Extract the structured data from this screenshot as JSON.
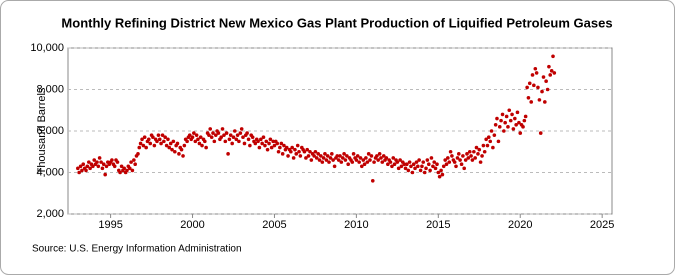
{
  "chart_data": {
    "type": "scatter",
    "title": "Monthly Refining District New Mexico Gas Plant Production of Liquified Petroleum Gases",
    "y_label": "Thousand Barrels",
    "source": "Source: U.S. Energy Information Administration",
    "color": "#c00000",
    "grid": true,
    "xlim": [
      1992.4,
      2025.6
    ],
    "ylim": [
      2000,
      10000
    ],
    "xticks": [
      1995,
      2000,
      2005,
      2010,
      2015,
      2020,
      2025
    ],
    "yticks": [
      {
        "value": 2000,
        "label": "2,000"
      },
      {
        "value": 4000,
        "label": "4,000"
      },
      {
        "value": 6000,
        "label": "6,000"
      },
      {
        "value": 8000,
        "label": "8,000"
      },
      {
        "value": 10000,
        "label": "10,000"
      }
    ],
    "x": [
      1993,
      1993.08,
      1993.17,
      1993.25,
      1993.33,
      1993.42,
      1993.5,
      1993.58,
      1993.67,
      1993.75,
      1993.83,
      1993.92,
      1994,
      1994.08,
      1994.17,
      1994.25,
      1994.33,
      1994.42,
      1994.5,
      1994.58,
      1994.67,
      1994.75,
      1994.83,
      1994.92,
      1995,
      1995.08,
      1995.17,
      1995.25,
      1995.33,
      1995.42,
      1995.5,
      1995.58,
      1995.67,
      1995.75,
      1995.83,
      1995.92,
      1996,
      1996.08,
      1996.17,
      1996.25,
      1996.33,
      1996.42,
      1996.5,
      1996.58,
      1996.67,
      1996.75,
      1996.83,
      1996.92,
      1997,
      1997.08,
      1997.17,
      1997.25,
      1997.33,
      1997.42,
      1997.5,
      1997.58,
      1997.67,
      1997.75,
      1997.83,
      1997.92,
      1998,
      1998.08,
      1998.17,
      1998.25,
      1998.33,
      1998.42,
      1998.5,
      1998.58,
      1998.67,
      1998.75,
      1998.83,
      1998.92,
      1999,
      1999.08,
      1999.17,
      1999.25,
      1999.33,
      1999.42,
      1999.5,
      1999.58,
      1999.67,
      1999.75,
      1999.83,
      1999.92,
      2000,
      2000.08,
      2000.17,
      2000.25,
      2000.33,
      2000.42,
      2000.5,
      2000.58,
      2000.67,
      2000.75,
      2000.83,
      2000.92,
      2001,
      2001.08,
      2001.17,
      2001.25,
      2001.33,
      2001.42,
      2001.5,
      2001.58,
      2001.67,
      2001.75,
      2001.83,
      2001.92,
      2002,
      2002.08,
      2002.17,
      2002.25,
      2002.33,
      2002.42,
      2002.5,
      2002.58,
      2002.67,
      2002.75,
      2002.83,
      2002.92,
      2003,
      2003.08,
      2003.17,
      2003.25,
      2003.33,
      2003.42,
      2003.5,
      2003.58,
      2003.67,
      2003.75,
      2003.83,
      2003.92,
      2004,
      2004.08,
      2004.17,
      2004.25,
      2004.33,
      2004.42,
      2004.5,
      2004.58,
      2004.67,
      2004.75,
      2004.83,
      2004.92,
      2005,
      2005.08,
      2005.17,
      2005.25,
      2005.33,
      2005.42,
      2005.5,
      2005.58,
      2005.67,
      2005.75,
      2005.83,
      2005.92,
      2006,
      2006.08,
      2006.17,
      2006.25,
      2006.33,
      2006.42,
      2006.5,
      2006.58,
      2006.67,
      2006.75,
      2006.83,
      2006.92,
      2007,
      2007.08,
      2007.17,
      2007.25,
      2007.33,
      2007.42,
      2007.5,
      2007.58,
      2007.67,
      2007.75,
      2007.83,
      2007.92,
      2008,
      2008.08,
      2008.17,
      2008.25,
      2008.33,
      2008.42,
      2008.5,
      2008.58,
      2008.67,
      2008.75,
      2008.83,
      2008.92,
      2009,
      2009.08,
      2009.17,
      2009.25,
      2009.33,
      2009.42,
      2009.5,
      2009.58,
      2009.67,
      2009.75,
      2009.83,
      2009.92,
      2010,
      2010.08,
      2010.17,
      2010.25,
      2010.33,
      2010.42,
      2010.5,
      2010.58,
      2010.67,
      2010.75,
      2010.83,
      2010.92,
      2011,
      2011.08,
      2011.17,
      2011.25,
      2011.33,
      2011.42,
      2011.5,
      2011.58,
      2011.67,
      2011.75,
      2011.83,
      2011.92,
      2012,
      2012.08,
      2012.17,
      2012.25,
      2012.33,
      2012.42,
      2012.5,
      2012.58,
      2012.67,
      2012.75,
      2012.83,
      2012.92,
      2013,
      2013.08,
      2013.17,
      2013.25,
      2013.33,
      2013.42,
      2013.5,
      2013.58,
      2013.67,
      2013.75,
      2013.83,
      2013.92,
      2014,
      2014.08,
      2014.17,
      2014.25,
      2014.33,
      2014.42,
      2014.5,
      2014.58,
      2014.67,
      2014.75,
      2014.83,
      2014.92,
      2015,
      2015.08,
      2015.17,
      2015.25,
      2015.33,
      2015.42,
      2015.5,
      2015.58,
      2015.67,
      2015.75,
      2015.83,
      2015.92,
      2016,
      2016.08,
      2016.17,
      2016.25,
      2016.33,
      2016.42,
      2016.5,
      2016.58,
      2016.67,
      2016.75,
      2016.83,
      2016.92,
      2017,
      2017.08,
      2017.17,
      2017.25,
      2017.33,
      2017.42,
      2017.5,
      2017.58,
      2017.67,
      2017.75,
      2017.83,
      2017.92,
      2018,
      2018.08,
      2018.17,
      2018.25,
      2018.33,
      2018.42,
      2018.5,
      2018.58,
      2018.67,
      2018.75,
      2018.83,
      2018.92,
      2019,
      2019.08,
      2019.17,
      2019.25,
      2019.33,
      2019.42,
      2019.5,
      2019.58,
      2019.67,
      2019.75,
      2019.83,
      2019.92,
      2020,
      2020.08,
      2020.17,
      2020.25,
      2020.33,
      2020.42,
      2020.5,
      2020.58,
      2020.67,
      2020.75,
      2020.83,
      2020.92,
      2021,
      2021.08,
      2021.17,
      2021.25,
      2021.33,
      2021.42,
      2021.5,
      2021.58,
      2021.67,
      2021.75,
      2021.83,
      2021.92,
      2022,
      2022.08
    ],
    "values": [
      4200,
      4000,
      4300,
      4100,
      4400,
      4200,
      4100,
      4300,
      4500,
      4200,
      4400,
      4300,
      4600,
      4400,
      4500,
      4300,
      4700,
      4500,
      4200,
      4400,
      3900,
      4300,
      4500,
      4400,
      4500,
      4600,
      4400,
      4300,
      4600,
      4500,
      4100,
      4000,
      4300,
      4100,
      4200,
      4000,
      4100,
      4300,
      4200,
      4500,
      4100,
      4600,
      4400,
      4800,
      4900,
      5200,
      5400,
      5600,
      5300,
      5700,
      5200,
      5500,
      5600,
      5400,
      5800,
      5700,
      5300,
      5600,
      5500,
      5800,
      5600,
      5400,
      5800,
      5500,
      5700,
      5300,
      5600,
      5200,
      5400,
      5100,
      5500,
      5000,
      5300,
      5400,
      4900,
      5200,
      5100,
      4800,
      5300,
      5600,
      5500,
      5700,
      5800,
      5600,
      5700,
      5900,
      5500,
      5800,
      5600,
      5400,
      5700,
      5300,
      5600,
      5500,
      5200,
      5900,
      5800,
      6100,
      5700,
      5900,
      5500,
      5800,
      6000,
      5900,
      5600,
      5700,
      6100,
      5800,
      5500,
      5900,
      4900,
      5600,
      5800,
      5400,
      5700,
      6000,
      5600,
      5800,
      5500,
      5900,
      6100,
      5700,
      5400,
      5800,
      5900,
      5600,
      5300,
      5800,
      5700,
      5500,
      5400,
      5600,
      5500,
      5200,
      5600,
      5400,
      5700,
      5300,
      5500,
      5100,
      5400,
      5600,
      5200,
      5500,
      5300,
      5500,
      5400,
      5000,
      5200,
      5400,
      4900,
      5300,
      5100,
      5200,
      4800,
      5100,
      5000,
      5200,
      4700,
      5100,
      4900,
      5300,
      5000,
      4800,
      5200,
      5100,
      5000,
      4700,
      5100,
      4800,
      5000,
      4600,
      4900,
      4800,
      5000,
      4700,
      4900,
      4600,
      4800,
      4500,
      4700,
      4900,
      4600,
      4800,
      4500,
      4700,
      4900,
      4600,
      4300,
      4700,
      4800,
      4600,
      4800,
      4500,
      4700,
      4900,
      4600,
      4800,
      4400,
      4700,
      4600,
      4500,
      4900,
      4700,
      4600,
      4800,
      4500,
      4700,
      4300,
      4600,
      4400,
      4700,
      4500,
      4900,
      4600,
      4800,
      3600,
      4500,
      4700,
      4800,
      4600,
      4900,
      4700,
      4500,
      4800,
      4600,
      4700,
      4400,
      4600,
      4500,
      4300,
      4700,
      4400,
      4600,
      4500,
      4200,
      4600,
      4300,
      4500,
      4400,
      4200,
      4400,
      4100,
      4500,
      4300,
      4000,
      4400,
      4200,
      4500,
      4300,
      4600,
      4100,
      4300,
      4500,
      4000,
      4200,
      4600,
      4400,
      4100,
      4700,
      4300,
      4500,
      4200,
      4400,
      4000,
      3800,
      4100,
      3900,
      4300,
      4600,
      4400,
      4700,
      4500,
      5000,
      4800,
      4600,
      4500,
      4300,
      4700,
      4900,
      4600,
      4400,
      4800,
      4200,
      4600,
      4900,
      4700,
      5000,
      4800,
      4600,
      5000,
      4700,
      5200,
      4900,
      5100,
      4500,
      4800,
      5300,
      5000,
      5600,
      5300,
      5700,
      5500,
      6000,
      5200,
      5800,
      6300,
      6600,
      5500,
      6200,
      6500,
      6800,
      6000,
      6400,
      6700,
      6200,
      7000,
      6500,
      6800,
      6100,
      6600,
      6300,
      6900,
      6400,
      5900,
      6300,
      6200,
      6500,
      6700,
      8100,
      7600,
      8300,
      7400,
      8700,
      8200,
      9000,
      8800,
      8100,
      7500,
      5900,
      7900,
      8600,
      7400,
      8400,
      8000,
      9100,
      8700,
      8900,
      9600,
      8800
    ]
  }
}
